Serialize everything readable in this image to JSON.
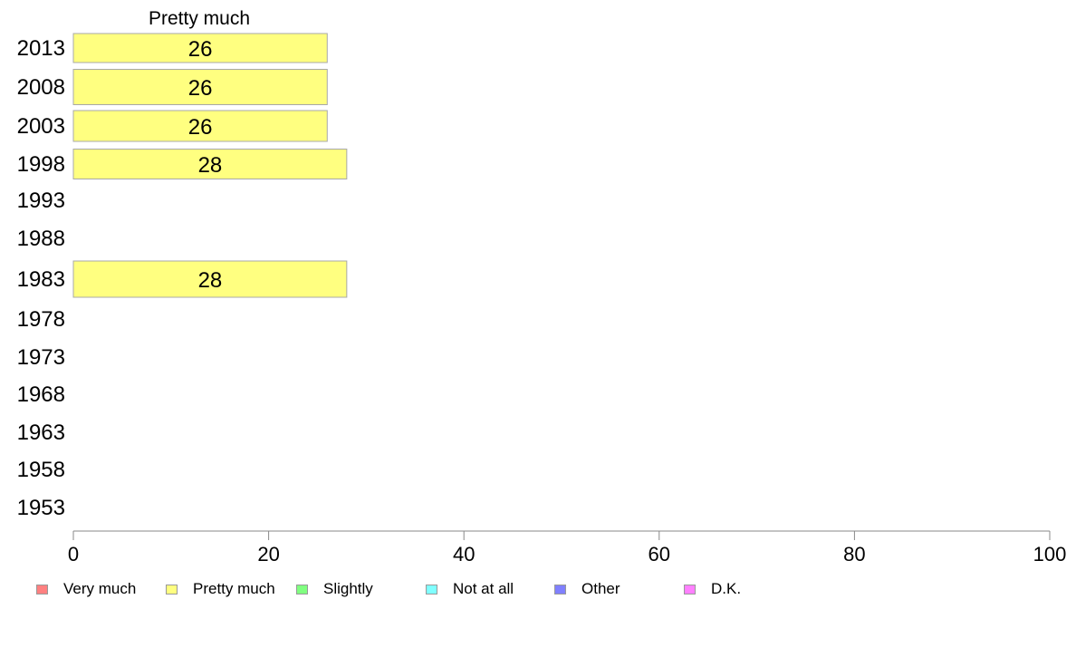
{
  "chart_data": {
    "type": "bar",
    "orientation": "horizontal",
    "stacked": true,
    "panel_title": "Pretty much",
    "categories": [
      "2013",
      "2008",
      "2003",
      "1998",
      "1993",
      "1988",
      "1983",
      "1978",
      "1973",
      "1968",
      "1963",
      "1958",
      "1953"
    ],
    "series": [
      {
        "name": "Very much",
        "color": "#ff8080",
        "values": [
          null,
          null,
          null,
          null,
          null,
          null,
          null,
          null,
          null,
          null,
          null,
          null,
          null
        ]
      },
      {
        "name": "Pretty much",
        "color": "#ffff80",
        "values": [
          26,
          26,
          26,
          28,
          null,
          null,
          28,
          null,
          null,
          null,
          null,
          null,
          null
        ]
      },
      {
        "name": "Slightly",
        "color": "#80ff80",
        "values": [
          null,
          null,
          null,
          null,
          null,
          null,
          null,
          null,
          null,
          null,
          null,
          null,
          null
        ]
      },
      {
        "name": "Not at all",
        "color": "#80ffff",
        "values": [
          null,
          null,
          null,
          null,
          null,
          null,
          null,
          null,
          null,
          null,
          null,
          null,
          null
        ]
      },
      {
        "name": "Other",
        "color": "#8080ff",
        "values": [
          null,
          null,
          null,
          null,
          null,
          null,
          null,
          null,
          null,
          null,
          null,
          null,
          null
        ]
      },
      {
        "name": "D.K.",
        "color": "#ff80ff",
        "values": [
          null,
          null,
          null,
          null,
          null,
          null,
          null,
          null,
          null,
          null,
          null,
          null,
          null
        ]
      }
    ],
    "xlim": [
      0,
      100
    ],
    "xticks": [
      0,
      20,
      40,
      60,
      80,
      100
    ],
    "grid": false,
    "legend_position": "bottom"
  }
}
